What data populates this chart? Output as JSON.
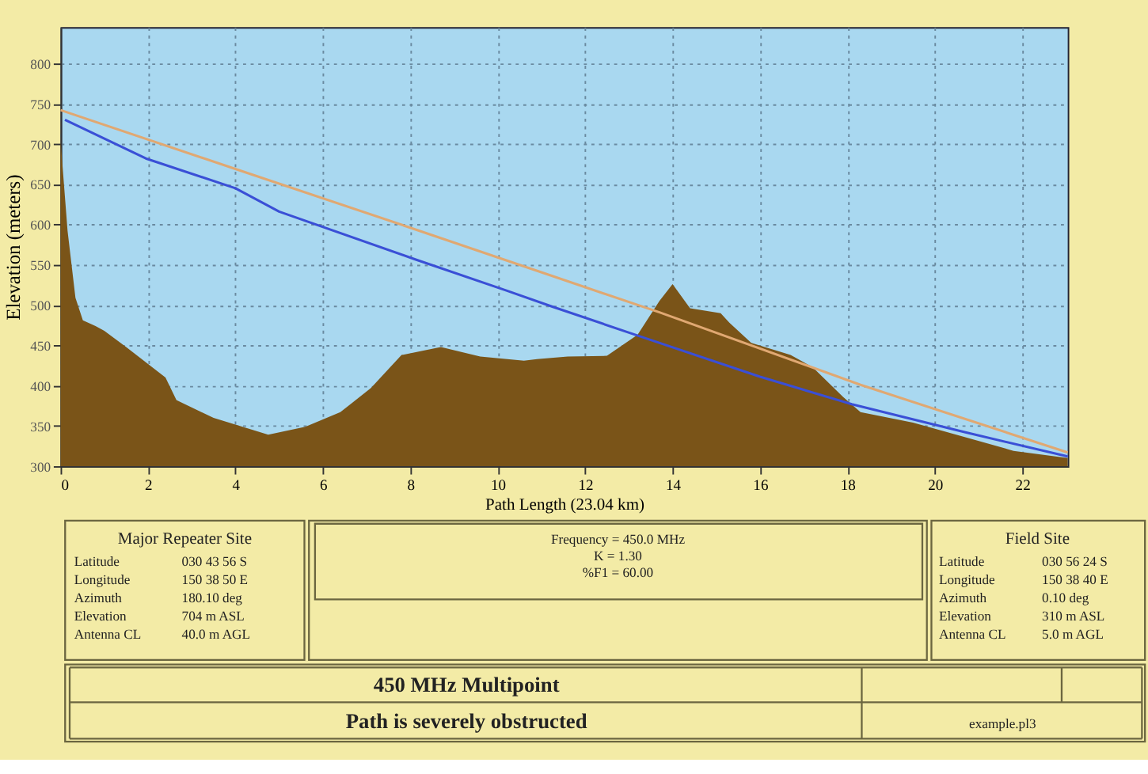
{
  "chart_data": {
    "type": "area",
    "xlabel": "Path Length (23.04 km)",
    "ylabel": "Elevation (meters)",
    "xlim": [
      0,
      23.04
    ],
    "ylim": [
      300,
      845
    ],
    "xticks": [
      0,
      2,
      4,
      6,
      8,
      10,
      12,
      14,
      16,
      18,
      20,
      22
    ],
    "yticks": [
      300,
      350,
      400,
      450,
      500,
      550,
      600,
      650,
      700,
      750,
      800
    ],
    "grid": true,
    "series": [
      {
        "color": "#7a5418",
        "x": [
          0,
          0.16,
          0.34,
          0.51,
          0.8,
          1.0,
          1.5,
          2.4,
          2.65,
          3.5,
          4.75,
          5.6,
          6.4,
          7.1,
          7.8,
          8.7,
          9.6,
          10.6,
          10.9,
          11.6,
          12.5,
          13.2,
          13.7,
          14.0,
          14.4,
          15.1,
          15.3,
          15.8,
          16.7,
          17.2,
          17.9,
          18.3,
          19.5,
          20.7,
          21.8,
          23.04
        ],
        "values": [
          704,
          592,
          509,
          481,
          474,
          468,
          448,
          410,
          382,
          360,
          339,
          349,
          367,
          397,
          438,
          448,
          436,
          431,
          433,
          436,
          437,
          463,
          505,
          526,
          496,
          490,
          478,
          453,
          438,
          423,
          386,
          367,
          354,
          336,
          319,
          310
        ]
      },
      {
        "type": "line",
        "color": "#3a4fd6",
        "x": [
          0.1,
          1.95,
          4.0,
          5.0,
          8.1,
          10.2,
          11.25,
          13.1,
          16.0,
          18.1,
          20.7,
          23.04
        ],
        "values": [
          730,
          682,
          645,
          616,
          557,
          518,
          498,
          464,
          411,
          377,
          342,
          312
        ]
      },
      {
        "type": "line",
        "color": "#e0a872",
        "x": [
          0,
          4.0,
          8.0,
          11.25,
          13.7,
          18.3,
          23.04
        ],
        "values": [
          742,
          669,
          596,
          536,
          491,
          401,
          317
        ]
      }
    ],
    "annotations": [
      "Major Repeater Site",
      "Latitude",
      "030 43 56 S",
      "Longitude",
      "150 38 50 E",
      "Azimuth",
      "180.10 deg",
      "Elevation",
      "704 m ASL",
      "Antenna CL",
      "40.0 m AGL",
      "Frequency = 450.0 MHz",
      "K = 1.30",
      "%F1 = 60.00",
      "Field Site",
      "Latitude",
      "030 56 24 S",
      "Longitude",
      "150 38 40 E",
      "Azimuth",
      "0.10 deg",
      "Elevation",
      "310 m ASL",
      "Antenna CL",
      "5.0 m AGL",
      "450 MHz Multipoint",
      "Path is severely obstructed",
      "example.pl3"
    ]
  }
}
